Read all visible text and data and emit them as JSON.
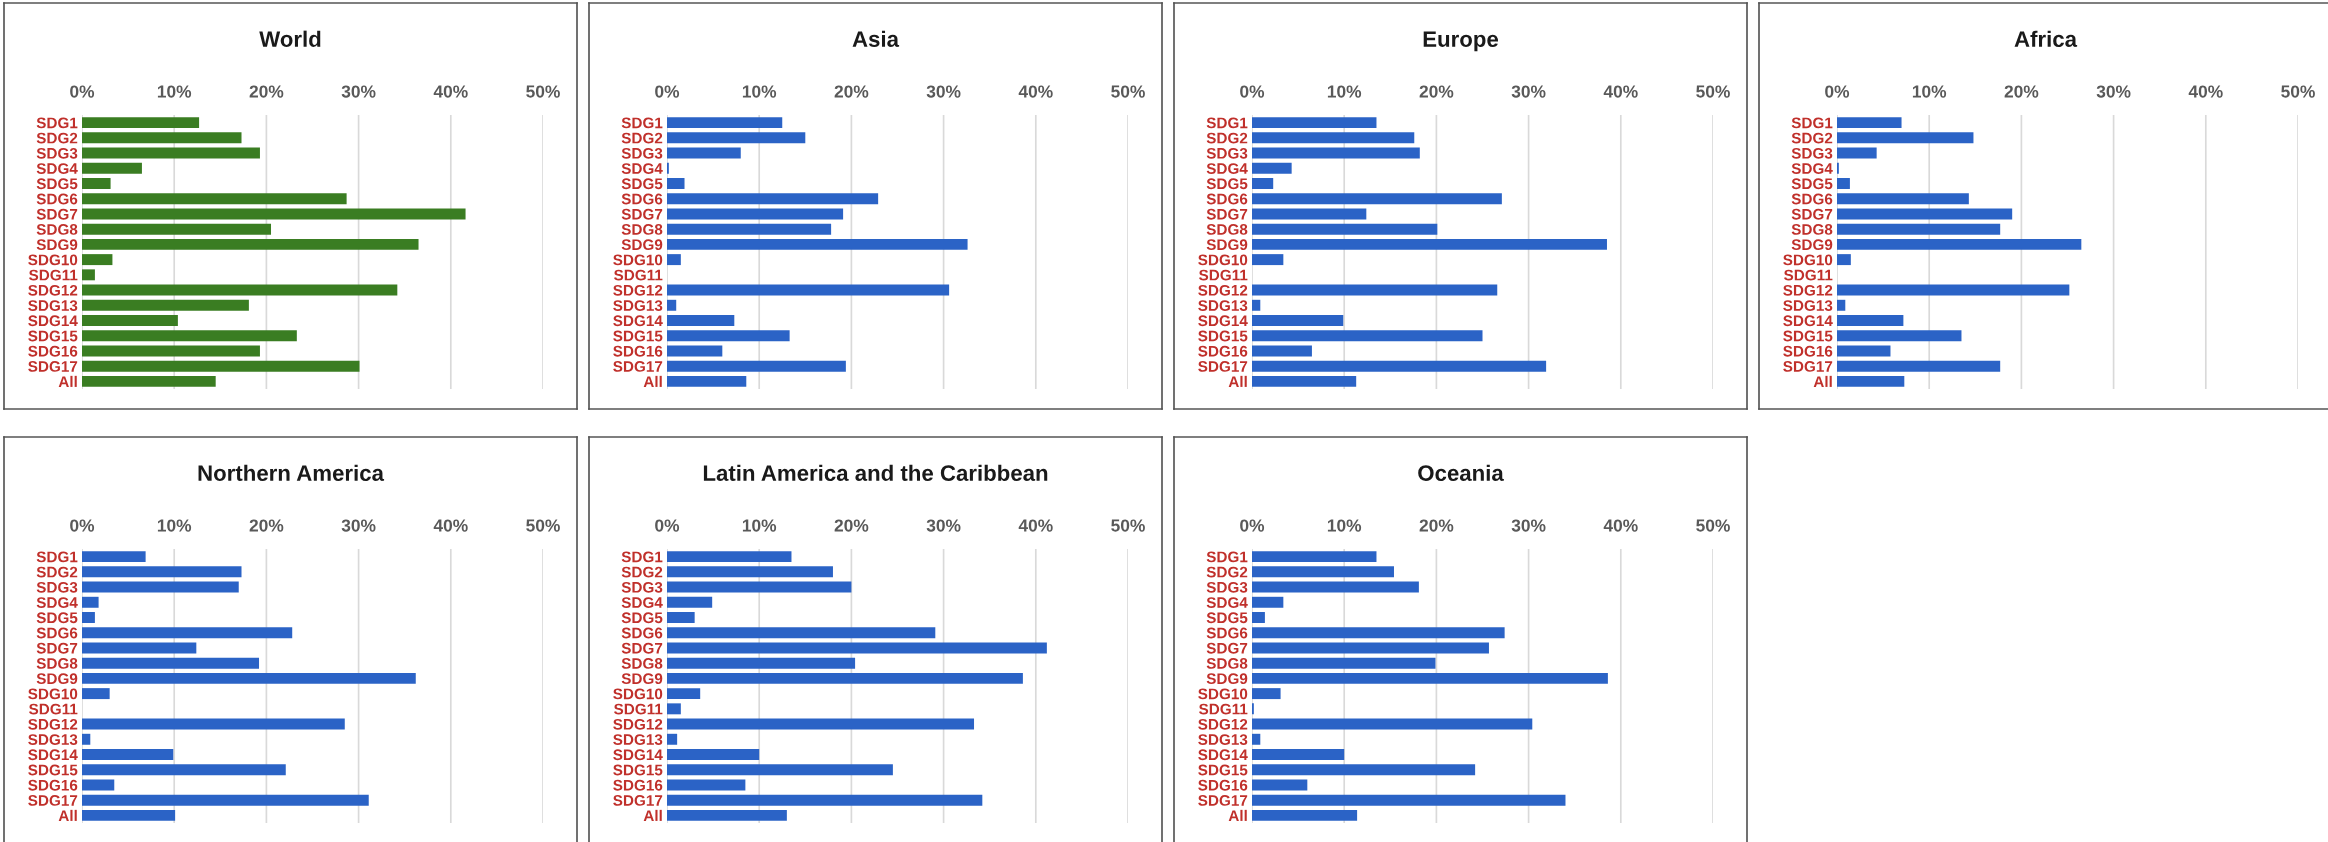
{
  "chart_data": [
    {
      "type": "bar",
      "orientation": "horizontal",
      "title": "World",
      "categories": [
        "SDG1",
        "SDG2",
        "SDG3",
        "SDG4",
        "SDG5",
        "SDG6",
        "SDG7",
        "SDG8",
        "SDG9",
        "SDG10",
        "SDG11",
        "SDG12",
        "SDG13",
        "SDG14",
        "SDG15",
        "SDG16",
        "SDG17",
        "All"
      ],
      "color": "#3a7d22",
      "values": [
        12.7,
        17.3,
        19.3,
        6.5,
        3.1,
        28.7,
        41.6,
        20.5,
        36.5,
        3.3,
        1.4,
        34.2,
        18.1,
        10.4,
        23.3,
        19.3,
        30.1,
        14.5
      ],
      "xlim": [
        0,
        50
      ],
      "xticks": [
        {
          "value": 0,
          "label": "0%"
        },
        {
          "value": 10,
          "label": "10%"
        },
        {
          "value": 20,
          "label": "20%"
        },
        {
          "value": 30,
          "label": "30%"
        },
        {
          "value": 40,
          "label": "40%"
        },
        {
          "value": 50,
          "label": "50%"
        }
      ],
      "grid": "x"
    },
    {
      "type": "bar",
      "orientation": "horizontal",
      "title": "Asia",
      "categories": [
        "SDG1",
        "SDG2",
        "SDG3",
        "SDG4",
        "SDG5",
        "SDG6",
        "SDG7",
        "SDG8",
        "SDG9",
        "SDG10",
        "SDG11",
        "SDG12",
        "SDG13",
        "SDG14",
        "SDG15",
        "SDG16",
        "SDG17",
        "All"
      ],
      "color": "#2b63c6",
      "values": [
        12.5,
        15.0,
        8.0,
        0.2,
        1.9,
        22.9,
        19.1,
        17.8,
        32.6,
        1.5,
        0,
        30.6,
        1.0,
        7.3,
        13.3,
        6.0,
        19.4,
        8.6
      ],
      "xlim": [
        0,
        50
      ],
      "xticks": [
        {
          "value": 0,
          "label": "0%"
        },
        {
          "value": 10,
          "label": "10%"
        },
        {
          "value": 20,
          "label": "20%"
        },
        {
          "value": 30,
          "label": "30%"
        },
        {
          "value": 40,
          "label": "40%"
        },
        {
          "value": 50,
          "label": "50%"
        }
      ],
      "grid": "x"
    },
    {
      "type": "bar",
      "orientation": "horizontal",
      "title": "Europe",
      "categories": [
        "SDG1",
        "SDG2",
        "SDG3",
        "SDG4",
        "SDG5",
        "SDG6",
        "SDG7",
        "SDG8",
        "SDG9",
        "SDG10",
        "SDG11",
        "SDG12",
        "SDG13",
        "SDG14",
        "SDG15",
        "SDG16",
        "SDG17",
        "All"
      ],
      "color": "#2b63c6",
      "values": [
        13.5,
        17.6,
        18.2,
        4.3,
        2.3,
        27.1,
        12.4,
        20.1,
        38.5,
        3.4,
        0,
        26.6,
        0.9,
        9.9,
        25.0,
        6.5,
        31.9,
        11.3
      ],
      "xlim": [
        0,
        50
      ],
      "xticks": [
        {
          "value": 0,
          "label": "0%"
        },
        {
          "value": 10,
          "label": "10%"
        },
        {
          "value": 20,
          "label": "20%"
        },
        {
          "value": 30,
          "label": "30%"
        },
        {
          "value": 40,
          "label": "40%"
        },
        {
          "value": 50,
          "label": "50%"
        }
      ],
      "grid": "x"
    },
    {
      "type": "bar",
      "orientation": "horizontal",
      "title": "Africa",
      "categories": [
        "SDG1",
        "SDG2",
        "SDG3",
        "SDG4",
        "SDG5",
        "SDG6",
        "SDG7",
        "SDG8",
        "SDG9",
        "SDG10",
        "SDG11",
        "SDG12",
        "SDG13",
        "SDG14",
        "SDG15",
        "SDG16",
        "SDG17",
        "All"
      ],
      "color": "#2b63c6",
      "values": [
        7.0,
        14.8,
        4.3,
        0.2,
        1.4,
        14.3,
        19.0,
        17.7,
        26.5,
        1.5,
        0,
        25.2,
        0.9,
        7.2,
        13.5,
        5.8,
        17.7,
        7.3
      ],
      "xlim": [
        0,
        50
      ],
      "xticks": [
        {
          "value": 0,
          "label": "0%"
        },
        {
          "value": 10,
          "label": "10%"
        },
        {
          "value": 20,
          "label": "20%"
        },
        {
          "value": 30,
          "label": "30%"
        },
        {
          "value": 40,
          "label": "40%"
        },
        {
          "value": 50,
          "label": "50%"
        }
      ],
      "grid": "x"
    },
    {
      "type": "bar",
      "orientation": "horizontal",
      "title": "Northern America",
      "categories": [
        "SDG1",
        "SDG2",
        "SDG3",
        "SDG4",
        "SDG5",
        "SDG6",
        "SDG7",
        "SDG8",
        "SDG9",
        "SDG10",
        "SDG11",
        "SDG12",
        "SDG13",
        "SDG14",
        "SDG15",
        "SDG16",
        "SDG17",
        "All"
      ],
      "color": "#2b63c6",
      "values": [
        6.9,
        17.3,
        17.0,
        1.8,
        1.4,
        22.8,
        12.4,
        19.2,
        36.2,
        3.0,
        0,
        28.5,
        0.9,
        9.9,
        22.1,
        3.5,
        31.1,
        10.1
      ],
      "xlim": [
        0,
        50
      ],
      "xticks": [
        {
          "value": 0,
          "label": "0%"
        },
        {
          "value": 10,
          "label": "10%"
        },
        {
          "value": 20,
          "label": "20%"
        },
        {
          "value": 30,
          "label": "30%"
        },
        {
          "value": 40,
          "label": "40%"
        },
        {
          "value": 50,
          "label": "50%"
        }
      ],
      "grid": "x"
    },
    {
      "type": "bar",
      "orientation": "horizontal",
      "title": "Latin America and the Caribbean",
      "categories": [
        "SDG1",
        "SDG2",
        "SDG3",
        "SDG4",
        "SDG5",
        "SDG6",
        "SDG7",
        "SDG8",
        "SDG9",
        "SDG10",
        "SDG11",
        "SDG12",
        "SDG13",
        "SDG14",
        "SDG15",
        "SDG16",
        "SDG17",
        "All"
      ],
      "color": "#2b63c6",
      "values": [
        13.5,
        18.0,
        20.0,
        4.9,
        3.0,
        29.1,
        41.2,
        20.4,
        38.6,
        3.6,
        1.5,
        33.3,
        1.1,
        10.0,
        24.5,
        8.5,
        34.2,
        13.0
      ],
      "xlim": [
        0,
        50
      ],
      "xticks": [
        {
          "value": 0,
          "label": "0%"
        },
        {
          "value": 10,
          "label": "10%"
        },
        {
          "value": 20,
          "label": "20%"
        },
        {
          "value": 30,
          "label": "30%"
        },
        {
          "value": 40,
          "label": "40%"
        },
        {
          "value": 50,
          "label": "50%"
        }
      ],
      "grid": "x"
    },
    {
      "type": "bar",
      "orientation": "horizontal",
      "title": "Oceania",
      "categories": [
        "SDG1",
        "SDG2",
        "SDG3",
        "SDG4",
        "SDG5",
        "SDG6",
        "SDG7",
        "SDG8",
        "SDG9",
        "SDG10",
        "SDG11",
        "SDG12",
        "SDG13",
        "SDG14",
        "SDG15",
        "SDG16",
        "SDG17",
        "All"
      ],
      "color": "#2b63c6",
      "values": [
        13.5,
        15.4,
        18.1,
        3.4,
        1.4,
        27.4,
        25.7,
        19.9,
        38.6,
        3.1,
        0.2,
        30.4,
        0.9,
        10.0,
        24.2,
        6.0,
        34.0,
        11.4
      ],
      "xlim": [
        0,
        50
      ],
      "xticks": [
        {
          "value": 0,
          "label": "0%"
        },
        {
          "value": 10,
          "label": "10%"
        },
        {
          "value": 20,
          "label": "20%"
        },
        {
          "value": 30,
          "label": "30%"
        },
        {
          "value": 40,
          "label": "40%"
        },
        {
          "value": 50,
          "label": "50%"
        }
      ],
      "grid": "x"
    }
  ]
}
